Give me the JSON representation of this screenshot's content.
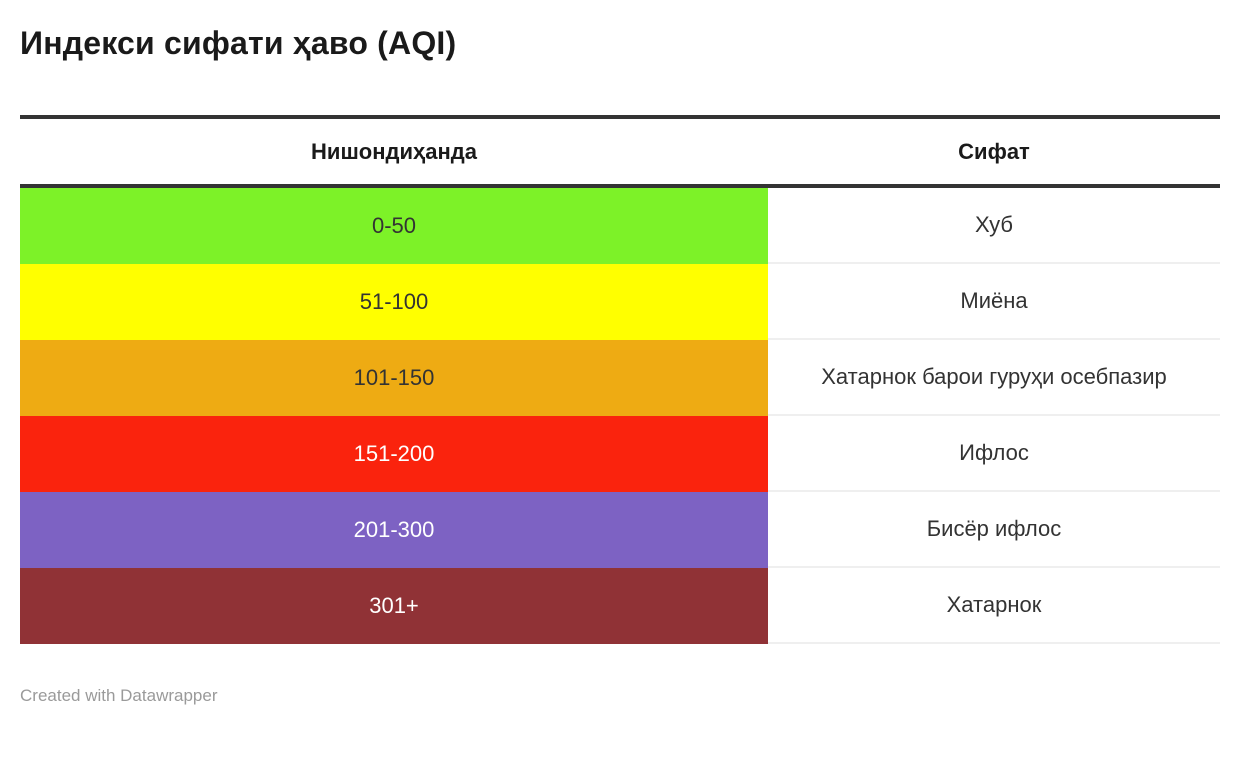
{
  "title": "Индекси сифати ҳаво (AQI)",
  "footer": "Created with Datawrapper",
  "colors": {
    "header_border": "#333333",
    "row_separator": "#efefef",
    "title_text": "#1a1a1a",
    "footer_text": "#9a9a9a"
  },
  "table": {
    "columns": [
      "Нишондиҳанда",
      "Сифат"
    ],
    "rows": [
      {
        "range": "0-50",
        "quality": "Хуб",
        "color": "#7df228",
        "text_color": "#333333"
      },
      {
        "range": "51-100",
        "quality": "Миёна",
        "color": "#ffff00",
        "text_color": "#333333"
      },
      {
        "range": "101-150",
        "quality": "Хатарнок барои гуруҳи осебпазир",
        "color": "#eeab13",
        "text_color": "#333333"
      },
      {
        "range": "151-200",
        "quality": "Ифлос",
        "color": "#fa230d",
        "text_color": "#ffffff"
      },
      {
        "range": "201-300",
        "quality": "Бисёр ифлос",
        "color": "#7d62c3",
        "text_color": "#ffffff"
      },
      {
        "range": "301+",
        "quality": "Хатарнок",
        "color": "#903236",
        "text_color": "#ffffff"
      }
    ]
  },
  "chart_data": {
    "type": "table",
    "title": "Индекси сифати ҳаво (AQI)",
    "columns": [
      "Нишондиҳанда",
      "Сифат"
    ],
    "rows": [
      [
        "0-50",
        "Хуб"
      ],
      [
        "51-100",
        "Миёна"
      ],
      [
        "101-150",
        "Хатарнок барои гуруҳи осебпазир"
      ],
      [
        "151-200",
        "Ифлос"
      ],
      [
        "201-300",
        "Бисёр ифлос"
      ],
      [
        "301+",
        "Хатарнок"
      ]
    ],
    "row_colors": [
      "#7df228",
      "#ffff00",
      "#eeab13",
      "#fa230d",
      "#7d62c3",
      "#903236"
    ],
    "attribution": "Created with Datawrapper"
  }
}
